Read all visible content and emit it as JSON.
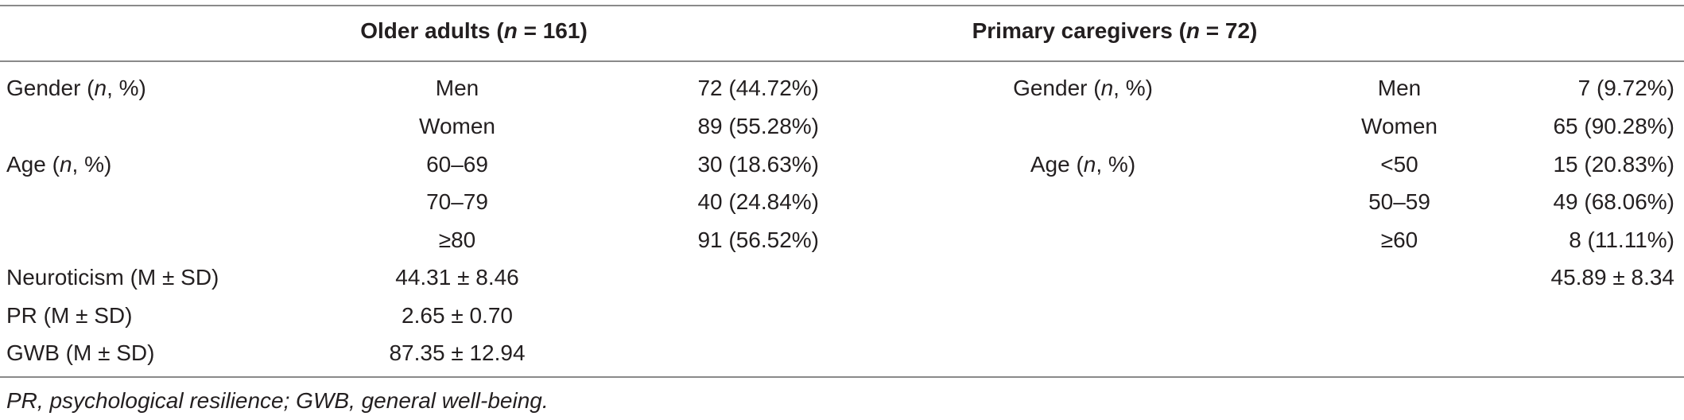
{
  "table": {
    "headers": {
      "older_adults": {
        "label": "Older adults (",
        "n_italic": "n",
        "rest": " = 161)"
      },
      "caregivers": {
        "label": "Primary caregivers (",
        "n_italic": "n",
        "rest": " = 72)"
      }
    },
    "older_adults": {
      "gender_label": {
        "pre": "Gender (",
        "n": "n",
        "post": ", %)"
      },
      "gender_men": "Men",
      "gender_men_value": "72 (44.72%)",
      "gender_women": "Women",
      "gender_women_value": "89 (55.28%)",
      "age_label": {
        "pre": "Age (",
        "n": "n",
        "post": ", %)"
      },
      "age_60_69": "60–69",
      "age_60_69_value": "30 (18.63%)",
      "age_70_79": "70–79",
      "age_70_79_value": "40 (24.84%)",
      "age_80_plus": "≥80",
      "age_80_plus_value": "91 (56.52%)",
      "neuroticism_label": "Neuroticism (M ± SD)",
      "neuroticism_value": "44.31 ± 8.46",
      "pr_label": "PR (M ± SD)",
      "pr_value": "2.65 ± 0.70",
      "gwb_label": "GWB (M ± SD)",
      "gwb_value": "87.35 ± 12.94"
    },
    "caregivers": {
      "gender_label": {
        "pre": "Gender (",
        "n": "n",
        "post": ", %)"
      },
      "gender_men": "Men",
      "gender_men_value": "7 (9.72%)",
      "gender_women": "Women",
      "gender_women_value": "65 (90.28%)",
      "age_label": {
        "pre": "Age (",
        "n": "n",
        "post": ", %)"
      },
      "age_lt50": "<50",
      "age_lt50_value": "15 (20.83%)",
      "age_50_59": "50–59",
      "age_50_59_value": "49 (68.06%)",
      "age_60_plus": "≥60",
      "age_60_plus_value": "8 (11.11%)",
      "neuroticism_value": "45.89 ± 8.34"
    },
    "footnote": "PR, psychological resilience; GWB, general well-being."
  }
}
